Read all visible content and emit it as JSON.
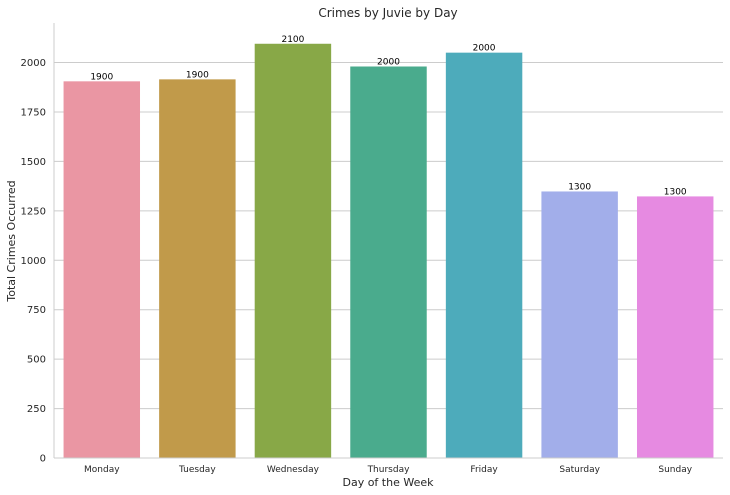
{
  "chart_data": {
    "type": "bar",
    "title": "Crimes by Juvie by Day",
    "xlabel": "Day of the Week",
    "ylabel": "Total Crimes Occurred",
    "categories": [
      "Monday",
      "Tuesday",
      "Wednesday",
      "Thursday",
      "Friday",
      "Saturday",
      "Sunday"
    ],
    "values": [
      1905,
      1915,
      2095,
      1980,
      2050,
      1348,
      1323
    ],
    "data_labels": [
      "1900",
      "1900",
      "2100",
      "2000",
      "2000",
      "1300",
      "1300"
    ],
    "colors": [
      "#ea96a3",
      "#c19a4a",
      "#88a847",
      "#4aab8d",
      "#4dabbb",
      "#a2aeea",
      "#e68ae1"
    ],
    "ylim": [
      0,
      2200
    ],
    "yticks": [
      0,
      250,
      500,
      750,
      1000,
      1250,
      1500,
      1750,
      2000
    ],
    "grid": "horizontal",
    "legend": "none"
  }
}
